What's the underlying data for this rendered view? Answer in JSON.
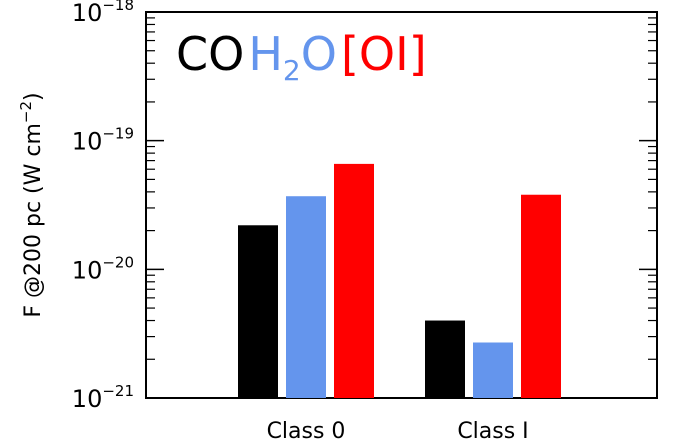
{
  "chart_data": {
    "type": "bar",
    "yscale": "log",
    "ylim": [
      1e-21,
      1e-18
    ],
    "ylabel": "F @200 pc (W cm⁻²)",
    "ylabel_parts": {
      "main": "F @200 pc (W cm",
      "sup": "−2",
      "close": ")"
    },
    "categories": [
      "Class 0",
      "Class I"
    ],
    "series": [
      {
        "name": "CO",
        "color": "#000000",
        "values": [
          2.2e-20,
          4e-21
        ]
      },
      {
        "name": "H2O",
        "color": "#6495ed",
        "values": [
          3.7e-20,
          2.7e-21
        ]
      },
      {
        "name": "[OI]",
        "color": "#ff0000",
        "values": [
          6.6e-20,
          3.8e-20
        ]
      }
    ],
    "y_ticks": [
      {
        "value": 1e-21,
        "base": "10",
        "exp": "−21"
      },
      {
        "value": 1e-20,
        "base": "10",
        "exp": "−20"
      },
      {
        "value": 1e-19,
        "base": "10",
        "exp": "−19"
      },
      {
        "value": 1e-18,
        "base": "10",
        "exp": "−18"
      }
    ],
    "legend": {
      "placement": "top-left",
      "items": [
        {
          "text": "CO",
          "color": "#000000"
        },
        {
          "text": "H",
          "sub": "2",
          "tail": "O",
          "color": "#6495ed"
        },
        {
          "text": "[OI]",
          "color": "#ff0000"
        }
      ]
    },
    "grid": false
  }
}
